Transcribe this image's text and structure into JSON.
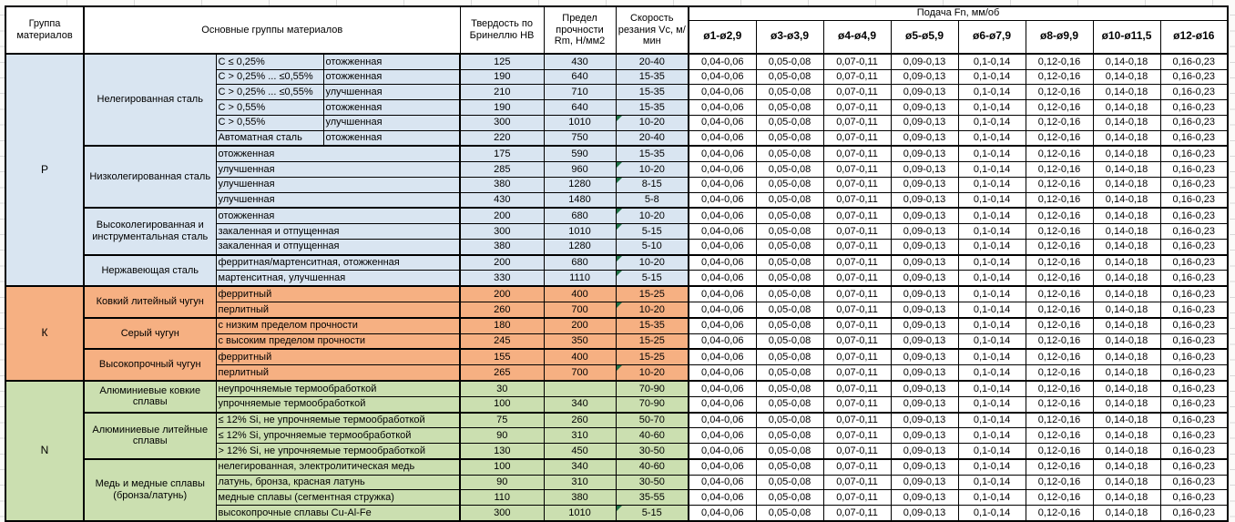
{
  "header": {
    "col_group": "Группа материалов",
    "col_main_groups": "Основные группы материалов",
    "col_hardness": "Твердость по Бринеллю HB",
    "col_strength": "Предел прочности Rm, Н/мм2",
    "col_speed": "Скорость резания Vc, м/мин",
    "feed_title": "Подача Fn, мм/об",
    "feed_cols": [
      "ø1-ø2,9",
      "ø3-ø3,9",
      "ø4-ø4,9",
      "ø5-ø5,9",
      "ø6-ø7,9",
      "ø8-ø9,9",
      "ø10-ø11,5",
      "ø12-ø16"
    ]
  },
  "feed_values": [
    "0,04-0,06",
    "0,05-0,08",
    "0,07-0,11",
    "0,09-0,13",
    "0,1-0,14",
    "0,12-0,16",
    "0,14-0,18",
    "0,16-0,23"
  ],
  "colors": {
    "section_P": "#d9e5f1",
    "section_K": "#f6b082",
    "section_N": "#cbdfb0",
    "note_marker": "#1e7145"
  },
  "sections": [
    {
      "code": "P",
      "groups": [
        {
          "name": "Нелегированная сталь",
          "rows": [
            {
              "cond": "С ≤ 0,25%",
              "treat": "отожженная",
              "hb": "125",
              "rm": "430",
              "vc": "20-40",
              "note": false
            },
            {
              "cond": "С > 0,25% ... ≤0,55%",
              "treat": "отожженная",
              "hb": "190",
              "rm": "640",
              "vc": "15-35",
              "note": false
            },
            {
              "cond": "С > 0,25% ... ≤0,55%",
              "treat": "улучшенная",
              "hb": "210",
              "rm": "710",
              "vc": "15-35",
              "note": false
            },
            {
              "cond": "С > 0,55%",
              "treat": "отожженная",
              "hb": "190",
              "rm": "640",
              "vc": "15-35",
              "note": false
            },
            {
              "cond": "С > 0,55%",
              "treat": "улучшенная",
              "hb": "300",
              "rm": "1010",
              "vc": "10-20",
              "note": true
            },
            {
              "cond": "Автоматная сталь",
              "treat": "отожженная",
              "hb": "220",
              "rm": "750",
              "vc": "20-40",
              "note": false
            }
          ]
        },
        {
          "name": "Низколегированная сталь",
          "rows": [
            {
              "desc": "отожженная",
              "hb": "175",
              "rm": "590",
              "vc": "15-35",
              "note": false
            },
            {
              "desc": "улучшенная",
              "hb": "285",
              "rm": "960",
              "vc": "10-20",
              "note": true
            },
            {
              "desc": "улучшенная",
              "hb": "380",
              "rm": "1280",
              "vc": "8-15",
              "note": true
            },
            {
              "desc": "улучшенная",
              "hb": "430",
              "rm": "1480",
              "vc": "5-8",
              "note": false
            }
          ]
        },
        {
          "name": "Высоколегированная и инструментальная сталь",
          "rows": [
            {
              "desc": "отожженная",
              "hb": "200",
              "rm": "680",
              "vc": "10-20",
              "note": true
            },
            {
              "desc": "закаленная и отпущенная",
              "hb": "300",
              "rm": "1010",
              "vc": "5-15",
              "note": true
            },
            {
              "desc": "закаленная и отпущенная",
              "hb": "380",
              "rm": "1280",
              "vc": "5-10",
              "note": false
            }
          ]
        },
        {
          "name": "Нержавеющая сталь",
          "rows": [
            {
              "desc": "ферритная/мартенситная, отожженная",
              "hb": "200",
              "rm": "680",
              "vc": "10-20",
              "note": true
            },
            {
              "desc": "мартенситная, улучшенная",
              "hb": "330",
              "rm": "1110",
              "vc": "5-15",
              "note": true
            }
          ]
        }
      ]
    },
    {
      "code": "К",
      "groups": [
        {
          "name": "Ковкий литейный чугун",
          "rows": [
            {
              "desc": "ферритный",
              "hb": "200",
              "rm": "400",
              "vc": "15-25",
              "note": false
            },
            {
              "desc": "перлитный",
              "hb": "260",
              "rm": "700",
              "vc": "10-20",
              "note": true
            }
          ]
        },
        {
          "name": "Серый чугун",
          "rows": [
            {
              "desc": "с низким пределом прочности",
              "hb": "180",
              "rm": "200",
              "vc": "15-35",
              "note": false
            },
            {
              "desc": "с высоким пределом прочности",
              "hb": "245",
              "rm": "350",
              "vc": "15-25",
              "note": false
            }
          ]
        },
        {
          "name": "Высокопрочный чугун",
          "rows": [
            {
              "desc": "ферритный",
              "hb": "155",
              "rm": "400",
              "vc": "15-25",
              "note": false
            },
            {
              "desc": "перлитный",
              "hb": "265",
              "rm": "700",
              "vc": "10-20",
              "note": true
            }
          ]
        }
      ]
    },
    {
      "code": "N",
      "groups": [
        {
          "name": "Алюминиевые ковкие сплавы",
          "rows": [
            {
              "desc": "неупрочняемые термообработкой",
              "hb": "30",
              "rm": "",
              "vc": "70-90",
              "note": false
            },
            {
              "desc": "упрочняемые термообработкой",
              "hb": "100",
              "rm": "340",
              "vc": "70-90",
              "note": false
            }
          ]
        },
        {
          "name": "Алюминиевые литейные сплавы",
          "rows": [
            {
              "desc": "≤ 12% Si, не упрочняемые термообработкой",
              "hb": "75",
              "rm": "260",
              "vc": "50-70",
              "note": false
            },
            {
              "desc": "≤ 12% Si, упрочняемые термообработкой",
              "hb": "90",
              "rm": "310",
              "vc": "40-60",
              "note": false
            },
            {
              "desc": "> 12% Si, не упрочняемые термообработкой",
              "hb": "130",
              "rm": "450",
              "vc": "30-50",
              "note": false
            }
          ]
        },
        {
          "name": "Медь и медные сплавы (бронза/латунь)",
          "rows": [
            {
              "desc": "нелегированная, электролитическая медь",
              "hb": "100",
              "rm": "340",
              "vc": "40-60",
              "note": false
            },
            {
              "desc": "латунь, бронза, красная латунь",
              "hb": "90",
              "rm": "310",
              "vc": "30-50",
              "note": false
            },
            {
              "desc": "медные сплавы (сегментная стружка)",
              "hb": "110",
              "rm": "380",
              "vc": "35-55",
              "note": false
            },
            {
              "desc": "высокопрочные сплавы Cu-Al-Fe",
              "hb": "300",
              "rm": "1010",
              "vc": "5-15",
              "note": true
            }
          ]
        }
      ]
    }
  ]
}
